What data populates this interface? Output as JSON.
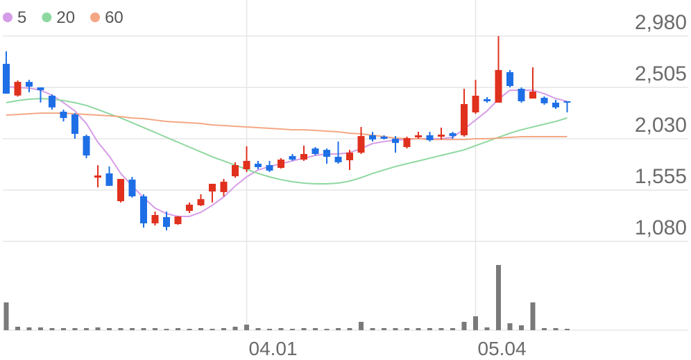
{
  "chart_data": {
    "type": "candlestick",
    "categories": [
      null,
      null,
      null,
      null,
      null,
      null,
      null,
      null,
      null,
      null,
      null,
      null,
      null,
      null,
      null,
      null,
      null,
      null,
      null,
      null,
      null,
      "04.01",
      null,
      null,
      null,
      null,
      null,
      null,
      null,
      null,
      null,
      null,
      null,
      null,
      null,
      null,
      null,
      null,
      null,
      null,
      null,
      "05.04",
      null,
      null,
      null,
      null,
      null,
      null,
      null,
      null
    ],
    "open": [
      2723,
      2430,
      2556,
      2505,
      2428,
      2280,
      2255,
      2055,
      1670,
      1709,
      1452,
      1652,
      1497,
      1247,
      1305,
      1240,
      1362,
      1414,
      1542,
      1536,
      1683,
      1748,
      1799,
      1786,
      1760,
      1870,
      1837,
      1940,
      1927,
      1863,
      1831,
      1901,
      2062,
      2049,
      2030,
      1953,
      2043,
      2062,
      2049,
      2081,
      2062,
      2274,
      2396,
      2364,
      2646,
      2492,
      2402,
      2409,
      2364,
      2377
    ],
    "high": [
      2839,
      2570,
      2575,
      2505,
      2440,
      2300,
      2268,
      2068,
      1785,
      1773,
      1658,
      1677,
      1516,
      1356,
      1356,
      1315,
      1440,
      1516,
      1613,
      1658,
      1812,
      1960,
      1825,
      1825,
      1850,
      1889,
      1966,
      1953,
      1940,
      2004,
      1927,
      2139,
      2094,
      2062,
      2055,
      2049,
      2094,
      2094,
      2133,
      2094,
      2492,
      2575,
      2415,
      2980,
      2666,
      2505,
      2691,
      2422,
      2390,
      2377
    ],
    "low": [
      2447,
      2420,
      2460,
      2365,
      2300,
      2190,
      2030,
      1850,
      1580,
      1594,
      1440,
      1485,
      1208,
      1227,
      1182,
      1234,
      1343,
      1407,
      1440,
      1497,
      1670,
      1722,
      1748,
      1722,
      1754,
      1825,
      1825,
      1876,
      1799,
      1799,
      1741,
      1889,
      2004,
      2023,
      1901,
      1940,
      2030,
      2004,
      2023,
      2030,
      2049,
      2261,
      2364,
      2364,
      2505,
      2364,
      2402,
      2345,
      2306,
      2274
    ],
    "close": [
      2447,
      2556,
      2512,
      2480,
      2320,
      2222,
      2075,
      1875,
      1690,
      1594,
      1658,
      1497,
      1247,
      1324,
      1214,
      1310,
      1420,
      1471,
      1613,
      1632,
      1786,
      1825,
      1767,
      1735,
      1837,
      1837,
      1889,
      1889,
      1863,
      1812,
      1901,
      2055,
      2023,
      2030,
      1991,
      2036,
      2062,
      2017,
      2068,
      2055,
      2351,
      2428,
      2377,
      2666,
      2518,
      2377,
      2466,
      2358,
      2320,
      2364
    ],
    "up_color": "#e0301e",
    "down_color": "#1e6fe6",
    "series": [
      {
        "name": "5",
        "color": "#d69ce8",
        "values": [
          2511,
          2505,
          2499,
          2479,
          2434,
          2364,
          2287,
          2171,
          1998,
          1870,
          1709,
          1593,
          1484,
          1388,
          1337,
          1311,
          1311,
          1349,
          1414,
          1491,
          1593,
          1677,
          1741,
          1773,
          1799,
          1825,
          1850,
          1876,
          1889,
          1889,
          1901,
          1940,
          1985,
          2004,
          2017,
          2023,
          2030,
          2030,
          2030,
          2043,
          2120,
          2203,
          2287,
          2396,
          2479,
          2479,
          2479,
          2447,
          2402,
          2377
        ]
      },
      {
        "name": "20",
        "color": "#8ed8a0",
        "values": [
          2364,
          2383,
          2396,
          2402,
          2396,
          2383,
          2364,
          2338,
          2300,
          2261,
          2222,
          2178,
          2133,
          2088,
          2043,
          1998,
          1953,
          1908,
          1863,
          1824,
          1786,
          1747,
          1709,
          1677,
          1651,
          1632,
          1619,
          1613,
          1613,
          1619,
          1638,
          1670,
          1709,
          1741,
          1773,
          1799,
          1824,
          1850,
          1876,
          1901,
          1927,
          1966,
          2004,
          2043,
          2081,
          2113,
          2139,
          2165,
          2190,
          2222
        ]
      },
      {
        "name": "60",
        "color": "#f4a784",
        "values": [
          2248,
          2255,
          2261,
          2267,
          2267,
          2267,
          2261,
          2255,
          2248,
          2242,
          2235,
          2222,
          2216,
          2203,
          2190,
          2184,
          2178,
          2171,
          2158,
          2152,
          2145,
          2139,
          2133,
          2126,
          2120,
          2113,
          2113,
          2107,
          2100,
          2094,
          2081,
          2075,
          2062,
          2049,
          2036,
          2030,
          2030,
          2023,
          2023,
          2023,
          2023,
          2030,
          2030,
          2036,
          2043,
          2049,
          2049,
          2049,
          2049,
          2049
        ]
      }
    ],
    "volume": {
      "color": "#7a7a7a",
      "values": [
        40,
        5,
        4,
        4,
        3,
        3,
        3,
        3,
        4,
        3,
        3,
        3,
        3,
        3,
        2,
        3,
        2,
        3,
        2,
        3,
        5,
        8,
        3,
        2,
        3,
        2,
        3,
        3,
        2,
        3,
        3,
        12,
        3,
        3,
        3,
        3,
        3,
        3,
        3,
        3,
        12,
        20,
        4,
        94,
        10,
        7,
        40,
        3,
        3,
        2
      ]
    },
    "ylim": [
      1080,
      3314
    ],
    "yticks": [
      {
        "value": 1080,
        "label": "1,080"
      },
      {
        "value": 1555,
        "label": "1,555"
      },
      {
        "value": 2030,
        "label": "2,030"
      },
      {
        "value": 2505,
        "label": "2,505"
      },
      {
        "value": 2980,
        "label": "2,980"
      }
    ],
    "y2lim": [
      0,
      96
    ],
    "grid": true
  }
}
